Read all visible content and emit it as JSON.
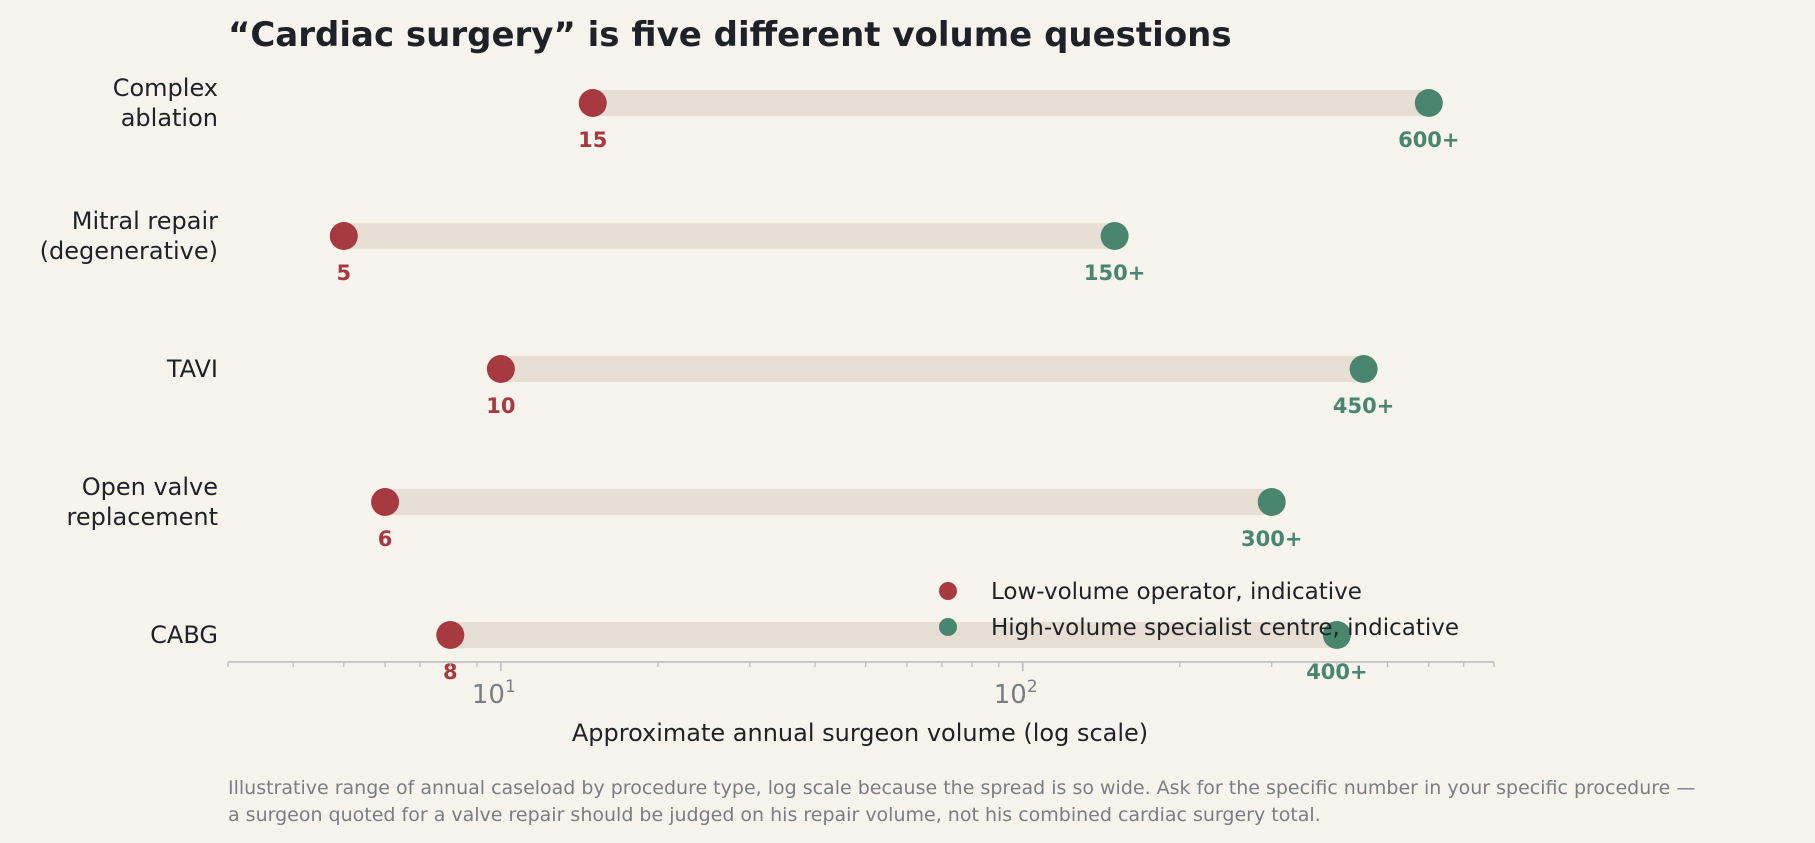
{
  "chart_data": {
    "type": "dumbbell",
    "title": "“Cardiac surgery” is five different volume questions",
    "categories": [
      [
        "Complex",
        "ablation"
      ],
      [
        "Mitral repair",
        "(degenerative)"
      ],
      [
        "TAVI"
      ],
      [
        "Open valve",
        "replacement"
      ],
      [
        "CABG"
      ]
    ],
    "series": [
      {
        "name": "Low-volume operator, indicative",
        "values": [
          15,
          5,
          10,
          6,
          8
        ],
        "labels": [
          "15",
          "5",
          "10",
          "6",
          "8"
        ]
      },
      {
        "name": "High-volume specialist centre, indicative",
        "values": [
          600,
          150,
          450,
          300,
          400
        ],
        "labels": [
          "600+",
          "150+",
          "450+",
          "300+",
          "400+"
        ]
      }
    ],
    "xlabel": "Approximate annual surgeon volume (log scale)",
    "xscale": "log",
    "xlim": [
      3,
      800
    ],
    "xticks": [
      {
        "value": 10,
        "base": "10",
        "exp": "1"
      },
      {
        "value": 100,
        "base": "10",
        "exp": "2"
      }
    ],
    "legend_position": "lower-right",
    "colors": {
      "low": "#a63a40",
      "high": "#4a8570",
      "range_bar": "#e7dfd4",
      "background": "#f7f4ee"
    },
    "note": [
      "Illustrative range of annual caseload by procedure type, log scale because the spread is so wide. Ask for the specific number in your specific procedure —",
      "a surgeon quoted for a valve repair should be judged on his repair volume, not his combined cardiac surgery total."
    ]
  }
}
